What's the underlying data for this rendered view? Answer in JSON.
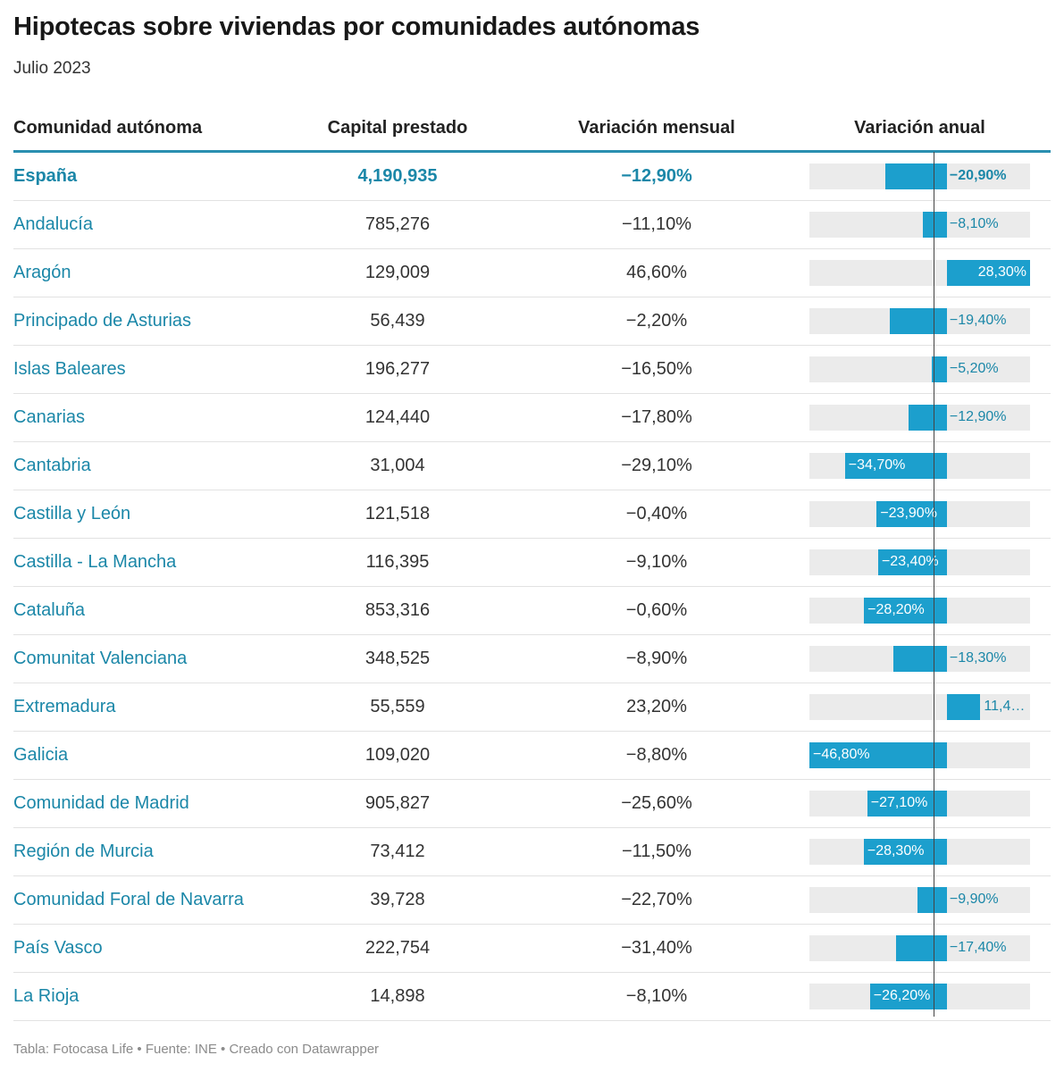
{
  "header": {
    "title": "Hipotecas sobre viviendas por comunidades autónomas",
    "subtitle": "Julio 2023"
  },
  "columns": {
    "region": "Comunidad autónoma",
    "capital": "Capital prestado",
    "monthly": "Variación mensual",
    "annual": "Variación anual"
  },
  "footer": "Tabla: Fotocasa Life • Fuente: INE • Creado con Datawrapper",
  "colors": {
    "bar": "#1c9fcd",
    "track": "#ebebeb",
    "accent": "#1b87a8"
  },
  "chart_data": {
    "type": "table",
    "title": "Hipotecas sobre viviendas por comunidades autónomas",
    "subtitle": "Julio 2023",
    "annual_range": [
      -46.8,
      28.3
    ],
    "rows": [
      {
        "region": "España",
        "capital": "4,190,935",
        "monthly": "−12,90%",
        "annual": -20.9,
        "annual_label": "−20,90%",
        "highlight": true
      },
      {
        "region": "Andalucía",
        "capital": "785,276",
        "monthly": "−11,10%",
        "annual": -8.1,
        "annual_label": "−8,10%"
      },
      {
        "region": "Aragón",
        "capital": "129,009",
        "monthly": "46,60%",
        "annual": 28.3,
        "annual_label": "28,30%"
      },
      {
        "region": "Principado de Asturias",
        "capital": "56,439",
        "monthly": "−2,20%",
        "annual": -19.4,
        "annual_label": "−19,40%"
      },
      {
        "region": "Islas Baleares",
        "capital": "196,277",
        "monthly": "−16,50%",
        "annual": -5.2,
        "annual_label": "−5,20%"
      },
      {
        "region": "Canarias",
        "capital": "124,440",
        "monthly": "−17,80%",
        "annual": -12.9,
        "annual_label": "−12,90%"
      },
      {
        "region": "Cantabria",
        "capital": "31,004",
        "monthly": "−29,10%",
        "annual": -34.7,
        "annual_label": "−34,70%"
      },
      {
        "region": "Castilla y León",
        "capital": "121,518",
        "monthly": "−0,40%",
        "annual": -23.9,
        "annual_label": "−23,90%"
      },
      {
        "region": "Castilla - La Mancha",
        "capital": "116,395",
        "monthly": "−9,10%",
        "annual": -23.4,
        "annual_label": "−23,40%"
      },
      {
        "region": "Cataluña",
        "capital": "853,316",
        "monthly": "−0,60%",
        "annual": -28.2,
        "annual_label": "−28,20%"
      },
      {
        "region": "Comunitat Valenciana",
        "capital": "348,525",
        "monthly": "−8,90%",
        "annual": -18.3,
        "annual_label": "−18,30%"
      },
      {
        "region": "Extremadura",
        "capital": "55,559",
        "monthly": "23,20%",
        "annual": 11.4,
        "annual_label": "11,4…"
      },
      {
        "region": "Galicia",
        "capital": "109,020",
        "monthly": "−8,80%",
        "annual": -46.8,
        "annual_label": "−46,80%"
      },
      {
        "region": "Comunidad de Madrid",
        "capital": "905,827",
        "monthly": "−25,60%",
        "annual": -27.1,
        "annual_label": "−27,10%"
      },
      {
        "region": "Región de Murcia",
        "capital": "73,412",
        "monthly": "−11,50%",
        "annual": -28.3,
        "annual_label": "−28,30%"
      },
      {
        "region": "Comunidad Foral de Navarra",
        "capital": "39,728",
        "monthly": "−22,70%",
        "annual": -9.9,
        "annual_label": "−9,90%"
      },
      {
        "region": "País Vasco",
        "capital": "222,754",
        "monthly": "−31,40%",
        "annual": -17.4,
        "annual_label": "−17,40%"
      },
      {
        "region": "La Rioja",
        "capital": "14,898",
        "monthly": "−8,10%",
        "annual": -26.2,
        "annual_label": "−26,20%"
      }
    ]
  }
}
